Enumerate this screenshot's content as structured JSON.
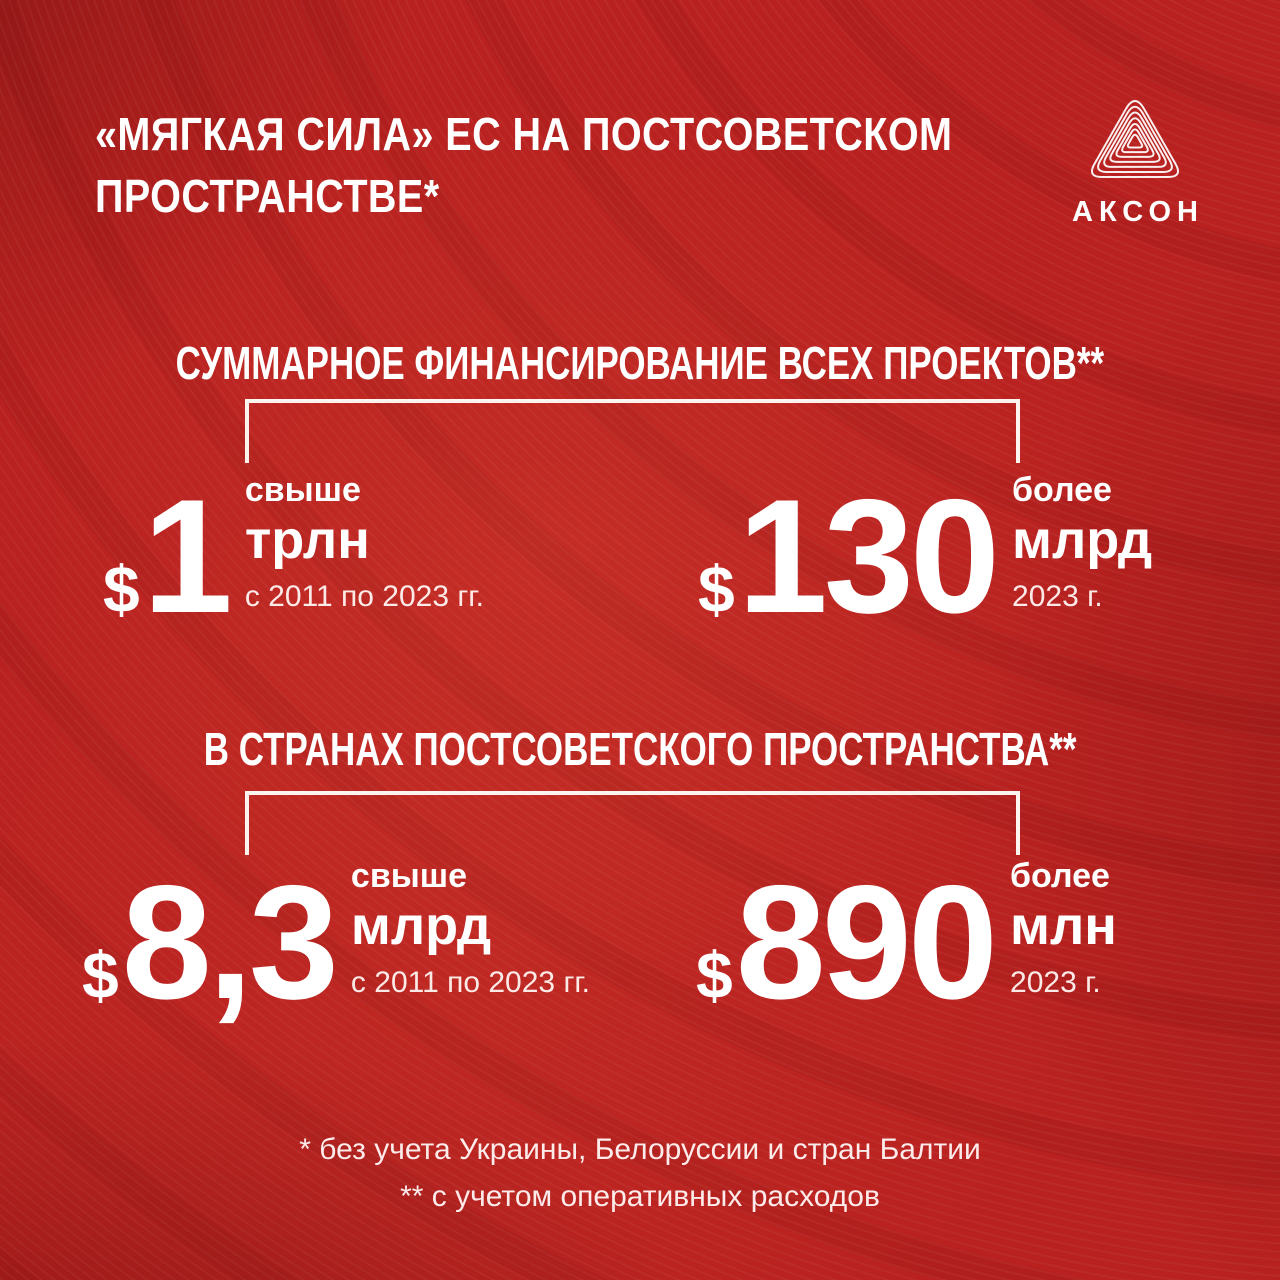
{
  "page": {
    "title_line1": "«МЯГКАЯ СИЛА» ЕС НА ПОСТСОВЕТСКОМ",
    "title_line2": "ПРОСТРАНСТВЕ*"
  },
  "logo": {
    "name": "АКСОН",
    "icon": "concentric-triangles-icon"
  },
  "colors": {
    "background": "#b8211f",
    "text": "#ffffff",
    "bracket": "#fffdf8"
  },
  "sections": [
    {
      "heading": "СУММАРНОЕ ФИНАНСИРОВАНИЕ ВСЕХ ПРОЕКТОВ**",
      "stats": [
        {
          "currency": "$",
          "value": "1",
          "qualifier": "свыше",
          "unit": "трлн",
          "period": "с 2011 по 2023 гг."
        },
        {
          "currency": "$",
          "value": "130",
          "qualifier": "более",
          "unit": "млрд",
          "period": "2023 г."
        }
      ]
    },
    {
      "heading": "В СТРАНАХ ПОСТСОВЕТСКОГО ПРОСТРАНСТВА**",
      "stats": [
        {
          "currency": "$",
          "value": "8,3",
          "qualifier": "свыше",
          "unit": "млрд",
          "period": "с 2011 по 2023 гг."
        },
        {
          "currency": "$",
          "value": "890",
          "qualifier": "более",
          "unit": "млн",
          "period": "2023 г."
        }
      ]
    }
  ],
  "footnotes": [
    "* без учета Украины, Белоруссии и стран Балтии",
    "** с учетом оперативных расходов"
  ],
  "chart_data": {
    "type": "table",
    "title": "«Мягкая сила» ЕС на постсоветском пространстве*",
    "groups": [
      {
        "category": "Суммарное финансирование всех проектов**",
        "values": [
          {
            "label": "с 2011 по 2023 гг.",
            "amount_usd": "свыше $1 трлн"
          },
          {
            "label": "2023 г.",
            "amount_usd": "более $130 млрд"
          }
        ]
      },
      {
        "category": "В странах постсоветского пространства**",
        "values": [
          {
            "label": "с 2011 по 2023 гг.",
            "amount_usd": "свыше $8,3 млрд"
          },
          {
            "label": "2023 г.",
            "amount_usd": "более $890 млн"
          }
        ]
      }
    ],
    "footnotes": [
      "* без учета Украины, Белоруссии и стран Балтии",
      "** с учетом оперативных расходов"
    ]
  }
}
